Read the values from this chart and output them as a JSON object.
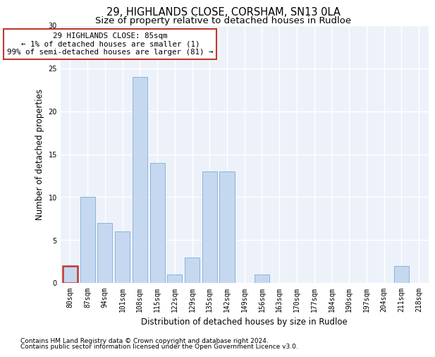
{
  "title_line1": "29, HIGHLANDS CLOSE, CORSHAM, SN13 0LA",
  "title_line2": "Size of property relative to detached houses in Rudloe",
  "xlabel": "Distribution of detached houses by size in Rudloe",
  "ylabel": "Number of detached properties",
  "categories": [
    "80sqm",
    "87sqm",
    "94sqm",
    "101sqm",
    "108sqm",
    "115sqm",
    "122sqm",
    "129sqm",
    "135sqm",
    "142sqm",
    "149sqm",
    "156sqm",
    "163sqm",
    "170sqm",
    "177sqm",
    "184sqm",
    "190sqm",
    "197sqm",
    "204sqm",
    "211sqm",
    "218sqm"
  ],
  "values": [
    2,
    10,
    7,
    6,
    24,
    14,
    1,
    3,
    13,
    13,
    0,
    1,
    0,
    0,
    0,
    0,
    0,
    0,
    0,
    2,
    0
  ],
  "bar_color": "#c5d8f0",
  "bar_edge_color": "#8ab4d8",
  "highlight_index": 0,
  "highlight_bar_edge_color": "#c0392b",
  "annotation_box_text": "29 HIGHLANDS CLOSE: 85sqm\n← 1% of detached houses are smaller (1)\n99% of semi-detached houses are larger (81) →",
  "annotation_box_color": "white",
  "annotation_box_edge_color": "#c0392b",
  "ylim": [
    0,
    30
  ],
  "yticks": [
    0,
    5,
    10,
    15,
    20,
    25,
    30
  ],
  "footnote_line1": "Contains HM Land Registry data © Crown copyright and database right 2024.",
  "footnote_line2": "Contains public sector information licensed under the Open Government Licence v3.0.",
  "background_color": "#edf2fa",
  "grid_color": "#ffffff",
  "title_fontsize": 10.5,
  "subtitle_fontsize": 9.5,
  "axis_label_fontsize": 8.5,
  "tick_fontsize": 7,
  "annotation_fontsize": 7.8,
  "footnote_fontsize": 6.5
}
